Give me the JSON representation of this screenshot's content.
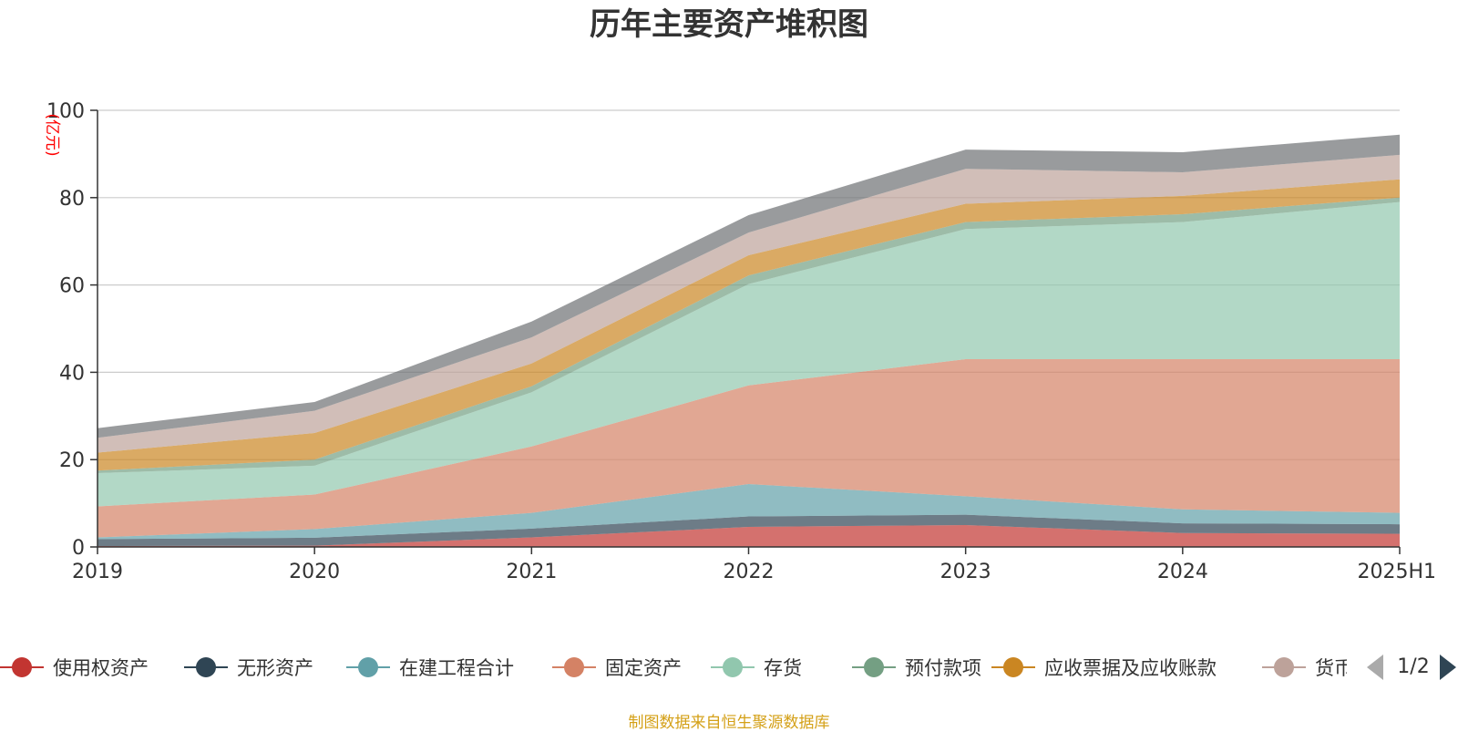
{
  "title": "历年主要资产堆积图",
  "source": "制图数据来自恒生聚源数据库",
  "legend": {
    "items": [
      {
        "label": "使用权资产",
        "color": "#c23531"
      },
      {
        "label": "无形资产",
        "color": "#2f4554"
      },
      {
        "label": "在建工程合计",
        "color": "#61a0a8"
      },
      {
        "label": "固定资产",
        "color": "#d48265"
      },
      {
        "label": "存货",
        "color": "#91c7ae"
      },
      {
        "label": "预付款项",
        "color": "#749f83"
      },
      {
        "label": "应收票据及应收账款",
        "color": "#ca8622"
      },
      {
        "label": "货币资金",
        "color": "#bda29a"
      }
    ],
    "pager": "1/2"
  },
  "chart_data": {
    "type": "area",
    "stacked": true,
    "title": "历年主要资产堆积图",
    "ylabel": "(亿元)",
    "ylabel_color": "#ff0000",
    "x": [
      "2019",
      "2020",
      "2021",
      "2022",
      "2023",
      "2024",
      "2025H1"
    ],
    "ylim": [
      0,
      100
    ],
    "yticks": [
      0,
      20,
      40,
      60,
      80,
      100
    ],
    "grid": true,
    "legend_position": "bottom",
    "series": [
      {
        "name": "使用权资产",
        "color": "#c23531",
        "values": [
          0.2,
          0.3,
          2.2,
          4.6,
          5.0,
          3.2,
          3.0
        ]
      },
      {
        "name": "无形资产",
        "color": "#2f4554",
        "values": [
          1.6,
          1.8,
          2.0,
          2.4,
          2.4,
          2.2,
          2.2
        ]
      },
      {
        "name": "在建工程合计",
        "color": "#61a0a8",
        "values": [
          0.4,
          2.0,
          3.6,
          7.4,
          4.2,
          3.2,
          2.6
        ]
      },
      {
        "name": "固定资产",
        "color": "#d48265",
        "values": [
          7.1,
          7.9,
          15.2,
          22.6,
          31.4,
          34.4,
          35.2
        ]
      },
      {
        "name": "存货",
        "color": "#91c7ae",
        "values": [
          7.6,
          6.6,
          12.4,
          23.2,
          29.8,
          31.4,
          36.0
        ]
      },
      {
        "name": "预付款项",
        "color": "#749f83",
        "values": [
          0.6,
          1.4,
          1.4,
          2.0,
          1.6,
          1.8,
          1.0
        ]
      },
      {
        "name": "应收票据及应收账款",
        "color": "#ca8622",
        "values": [
          4.1,
          6.1,
          5.2,
          4.6,
          4.2,
          4.2,
          4.2
        ]
      },
      {
        "name": "货币资金",
        "color": "#bda29a",
        "values": [
          3.4,
          5.1,
          6.0,
          5.2,
          8.0,
          5.4,
          5.6
        ]
      },
      {
        "name": "",
        "color": "#6e7074",
        "values": [
          2.2,
          2.0,
          3.6,
          4.0,
          4.4,
          4.6,
          4.6
        ]
      }
    ]
  }
}
